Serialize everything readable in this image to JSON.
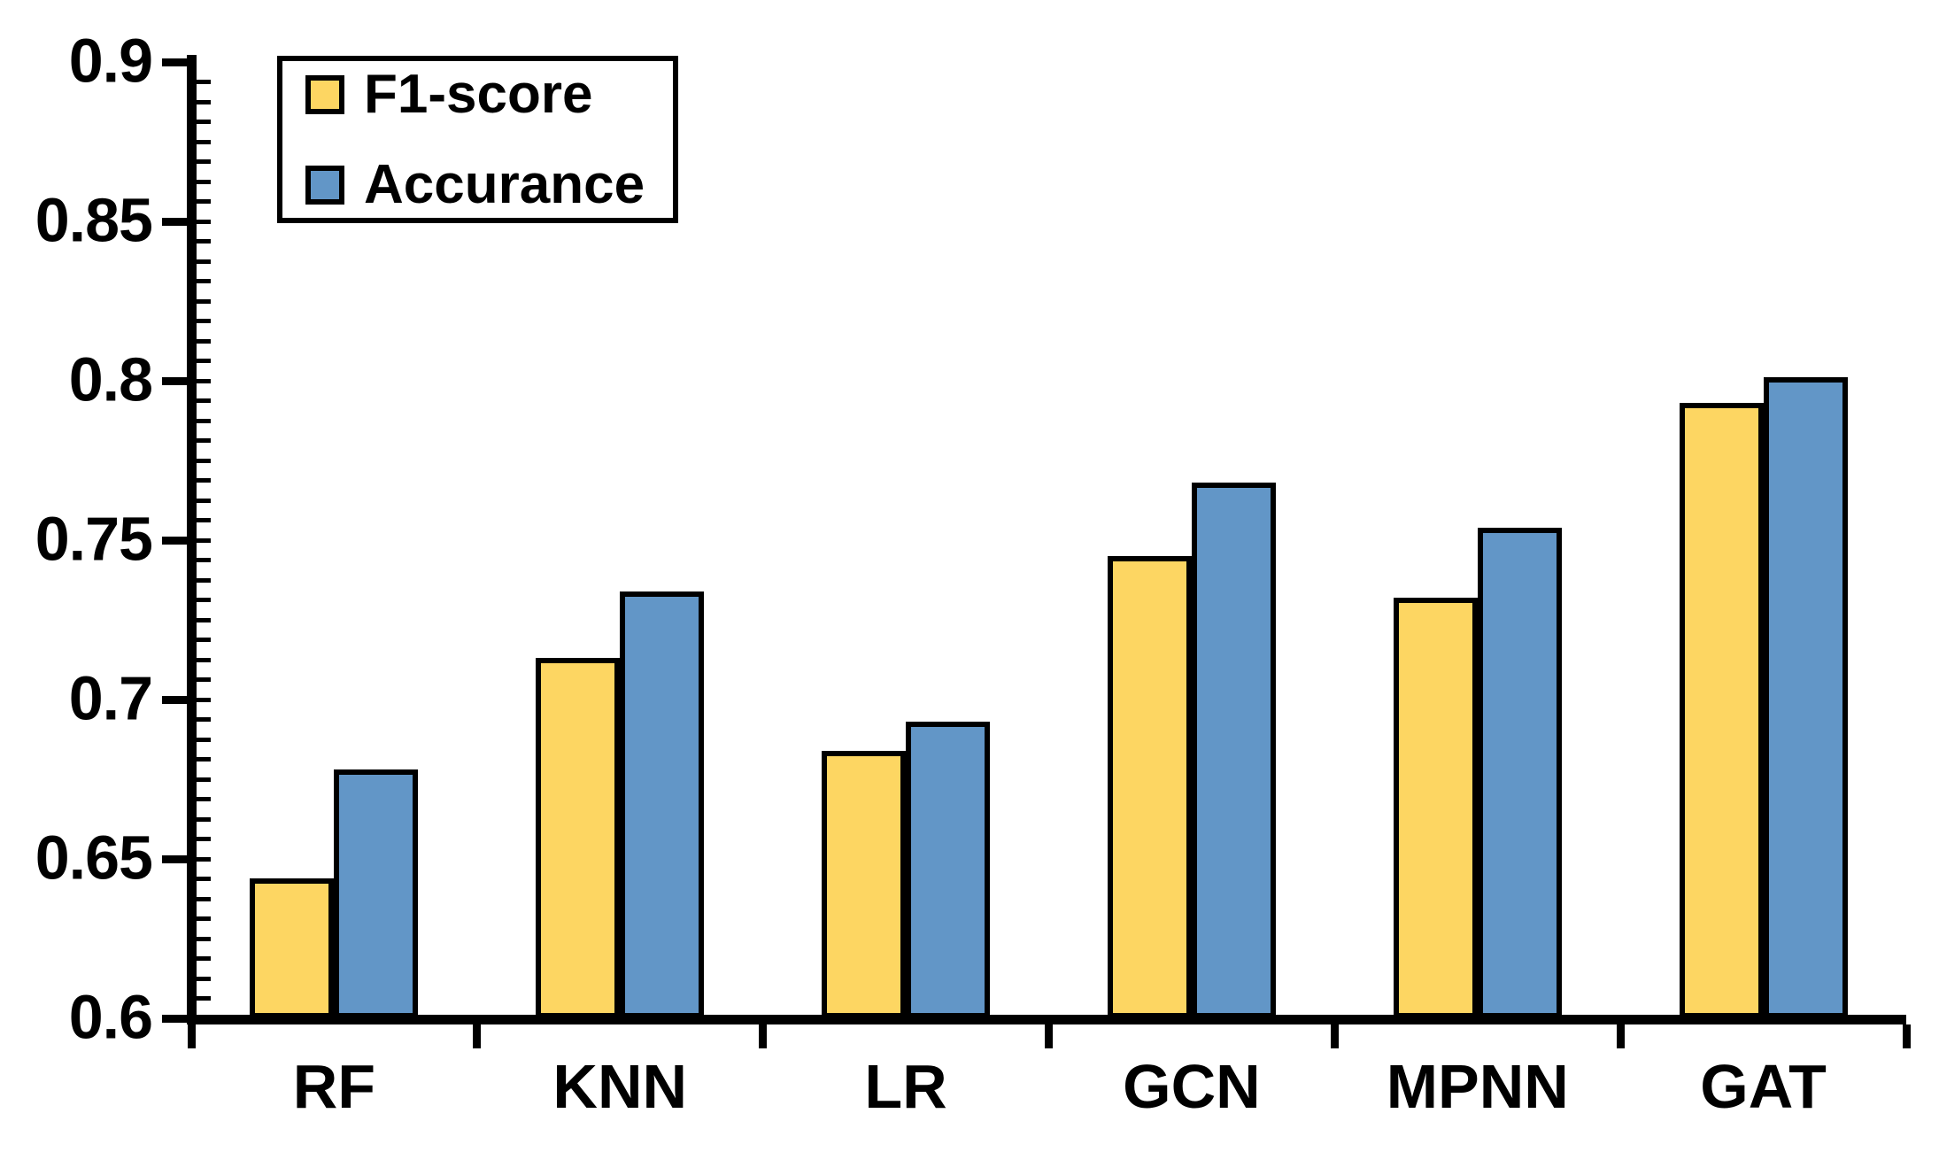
{
  "chart_data": {
    "type": "bar",
    "categories": [
      "RF",
      "KNN",
      "LR",
      "GCN",
      "MPNN",
      "GAT"
    ],
    "series": [
      {
        "name": "F1-score",
        "color": "#FDD662",
        "values": [
          0.644,
          0.713,
          0.684,
          0.745,
          0.732,
          0.793
        ]
      },
      {
        "name": "Accurance",
        "color": "#6296C7",
        "values": [
          0.678,
          0.734,
          0.693,
          0.768,
          0.754,
          0.801
        ]
      }
    ],
    "title": "",
    "xlabel": "",
    "ylabel": "",
    "ylim": [
      0.6,
      0.9
    ],
    "yticks": [
      {
        "value": 0.9,
        "label": "0.9"
      },
      {
        "value": 0.85,
        "label": "0.85"
      },
      {
        "value": 0.8,
        "label": "0.8"
      },
      {
        "value": 0.75,
        "label": "0.75"
      },
      {
        "value": 0.7,
        "label": "0.7"
      },
      {
        "value": 0.65,
        "label": "0.65"
      },
      {
        "value": 0.6,
        "label": "0.6"
      }
    ],
    "minor_tick_step": 0.00625,
    "grid": false,
    "legend_position": "top-left",
    "axis_color": "#000000",
    "background_color": "#FFFFFF"
  }
}
